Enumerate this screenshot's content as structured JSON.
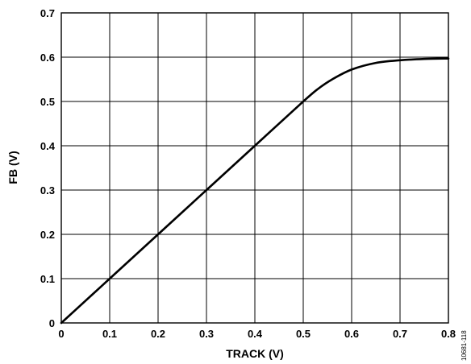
{
  "chart_data": {
    "type": "line",
    "xlabel": "TRACK (V)",
    "ylabel": "FB (V)",
    "xlim": [
      0,
      0.8
    ],
    "ylim": [
      0,
      0.7
    ],
    "xticks": [
      "0",
      "0.1",
      "0.2",
      "0.3",
      "0.4",
      "0.5",
      "0.6",
      "0.7",
      "0.8"
    ],
    "yticks": [
      "0",
      "0.1",
      "0.2",
      "0.3",
      "0.4",
      "0.5",
      "0.6",
      "0.7"
    ],
    "grid": true,
    "series": [
      {
        "x": [
          0,
          0.1,
          0.2,
          0.3,
          0.4,
          0.5,
          0.53,
          0.56,
          0.6,
          0.65,
          0.7,
          0.75,
          0.8
        ],
        "y": [
          0,
          0.1,
          0.2,
          0.3,
          0.4,
          0.5,
          0.528,
          0.55,
          0.572,
          0.587,
          0.593,
          0.596,
          0.597
        ]
      }
    ],
    "figure_id": "10681-118"
  }
}
